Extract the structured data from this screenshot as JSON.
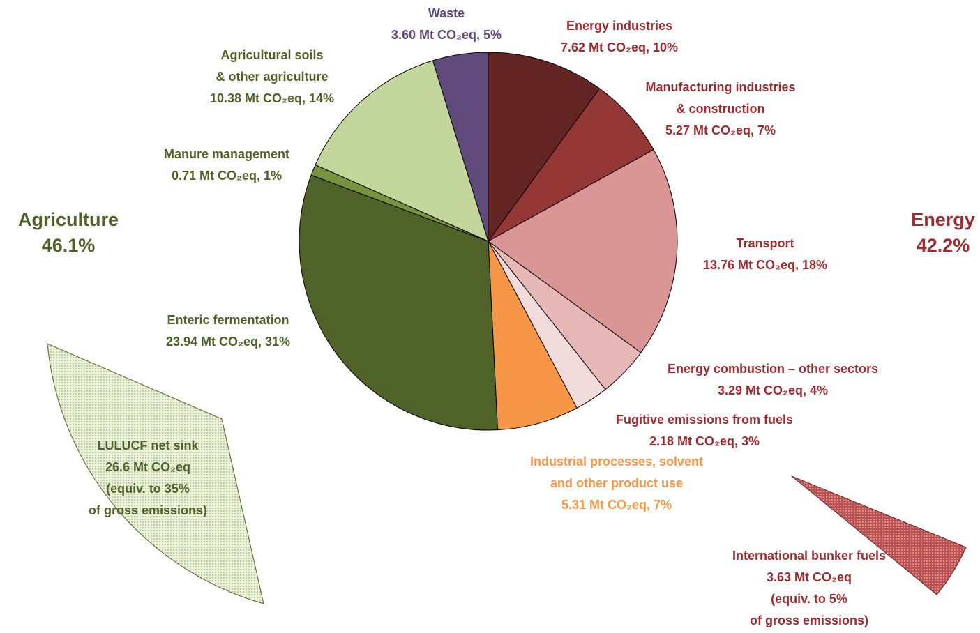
{
  "chart_data": {
    "type": "pie",
    "categories": [
      "Energy industries",
      "Manufacturing industries\n& construction",
      "Transport",
      "Energy combustion – other sectors",
      "Fugitive emissions from fuels",
      "Industrial processes, solvent\nand other product use",
      "Enteric fermentation",
      "Manure management",
      "Agricultural soils\n& other agriculture",
      "Waste"
    ],
    "values": [
      7.62,
      5.27,
      13.76,
      3.29,
      2.18,
      5.31,
      23.94,
      0.71,
      10.38,
      3.6
    ],
    "value_labels": [
      "7.62 Mt CO₂eq, 10%",
      "5.27 Mt CO₂eq, 7%",
      "13.76 Mt CO₂eq, 18%",
      "3.29 Mt CO₂eq, 4%",
      "2.18 Mt CO₂eq, 3%",
      "5.31 Mt CO₂eq, 7%",
      "23.94 Mt CO₂eq, 31%",
      "0.71 Mt CO₂eq, 1%",
      "10.38 Mt CO₂eq, 14%",
      "3.60 Mt CO₂eq, 5%"
    ],
    "colors": [
      "#632523",
      "#953735",
      "#d99694",
      "#e6b9b8",
      "#f2dcdb",
      "#f79646",
      "#4f6228",
      "#77933c",
      "#c3d69b",
      "#604a7b"
    ],
    "label_colors": [
      "#9b2d30",
      "#9b2d30",
      "#9b2d30",
      "#9b2d30",
      "#9b2d30",
      "#f79646",
      "#4f6228",
      "#4f6228",
      "#4f6228",
      "#5f497a"
    ],
    "annotations": [
      {
        "text": "Agriculture\n46.1%",
        "color": "#4f6228"
      },
      {
        "text": "Energy\n42.2%",
        "color": "#9b2d30"
      },
      {
        "text": "LULUCF net sink\n26.6 Mt CO₂eq\n(equiv. to 35%\nof gross emissions)",
        "color": "#4f6228"
      },
      {
        "text": "International bunker fuels\n3.63 Mt CO₂eq\n(equiv. to 5%\nof gross emissions)",
        "color": "#9b2d30"
      }
    ]
  }
}
